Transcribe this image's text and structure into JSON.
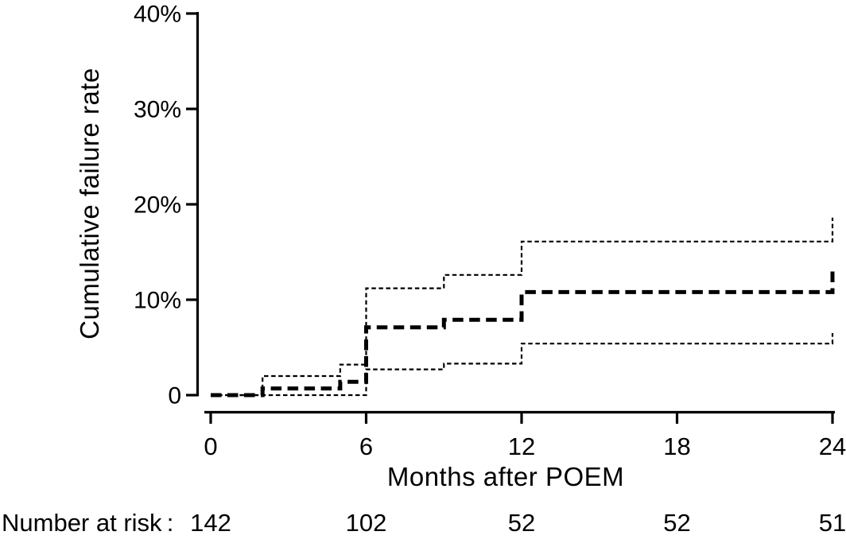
{
  "chart_data": {
    "type": "line",
    "subtype": "kaplan-meier-cumulative-incidence-step",
    "title": "",
    "xlabel": "Months after POEM",
    "ylabel": "Cumulative failure rate",
    "xlim": [
      0,
      24
    ],
    "ylim": [
      0,
      40
    ],
    "grid": "off",
    "legend": "none",
    "x_ticks": [
      {
        "value": 0,
        "label": "0"
      },
      {
        "value": 6,
        "label": "6"
      },
      {
        "value": 12,
        "label": "12"
      },
      {
        "value": 18,
        "label": "18"
      },
      {
        "value": 24,
        "label": "24"
      }
    ],
    "y_ticks": [
      {
        "value": 0,
        "label": "0"
      },
      {
        "value": 10,
        "label": "10%"
      },
      {
        "value": 20,
        "label": "20%"
      },
      {
        "value": 30,
        "label": "30%"
      },
      {
        "value": 40,
        "label": "40%"
      }
    ],
    "series": [
      {
        "name": "cumulative-failure-estimate",
        "style": "bold-dashed",
        "unit": "percent",
        "steps": [
          [
            0,
            0
          ],
          [
            2,
            0.7
          ],
          [
            5,
            1.4
          ],
          [
            6,
            7.1
          ],
          [
            9,
            7.9
          ],
          [
            12,
            10.8
          ],
          [
            24,
            13.0
          ]
        ]
      },
      {
        "name": "upper-95ci",
        "style": "thin-dashed",
        "unit": "percent",
        "steps": [
          [
            0,
            0
          ],
          [
            2,
            2.0
          ],
          [
            5,
            3.2
          ],
          [
            6,
            11.2
          ],
          [
            9,
            12.6
          ],
          [
            12,
            16.1
          ],
          [
            24,
            18.6
          ]
        ]
      },
      {
        "name": "lower-95ci",
        "style": "thin-dashed",
        "unit": "percent",
        "steps": [
          [
            0,
            0
          ],
          [
            6,
            2.7
          ],
          [
            9,
            3.3
          ],
          [
            12,
            5.4
          ],
          [
            24,
            6.5
          ]
        ]
      }
    ],
    "number_at_risk": {
      "label": "Number at risk :",
      "months": [
        0,
        6,
        12,
        18,
        24
      ],
      "counts": [
        "142",
        "102",
        "52",
        "52",
        "51"
      ]
    },
    "colors": {
      "line": "#000000",
      "background": "#ffffff"
    }
  }
}
